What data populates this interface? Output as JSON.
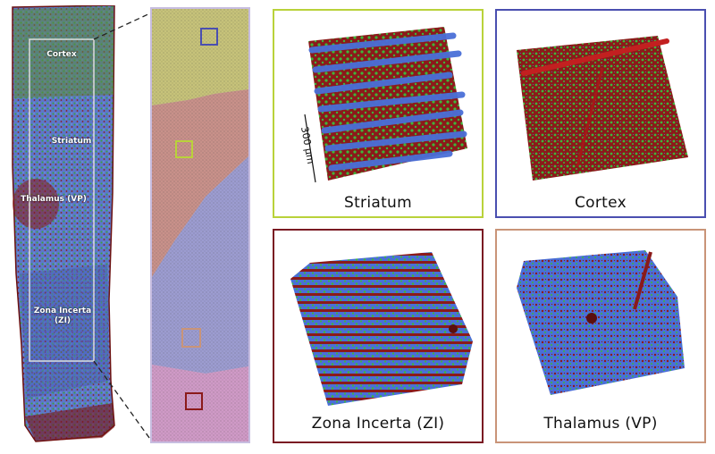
{
  "tissue": {
    "regions": [
      {
        "id": "cortex",
        "label": "Cortex"
      },
      {
        "id": "striatum",
        "label": "Striatum"
      },
      {
        "id": "thalamus",
        "label": "Thalamus (VP)"
      },
      {
        "id": "zi",
        "label": "Zona Incerta\n(ZI)"
      }
    ]
  },
  "panels": {
    "striatum": {
      "label": "Striatum",
      "border_color": "#b9d23a"
    },
    "cortex": {
      "label": "Cortex",
      "border_color": "#4a4fb0"
    },
    "zi": {
      "label": "Zona Incerta (ZI)",
      "border_color": "#7a1a22"
    },
    "thalamus": {
      "label": "Thalamus (VP)",
      "border_color": "#c99478"
    }
  },
  "scale_bar": {
    "label": "300 μm"
  },
  "colors": {
    "vessel_red": "#8b1a1a",
    "axon_blue": "#4a6fd8",
    "cell_green": "#3db83a",
    "strip_frame": "#c7bde0"
  }
}
